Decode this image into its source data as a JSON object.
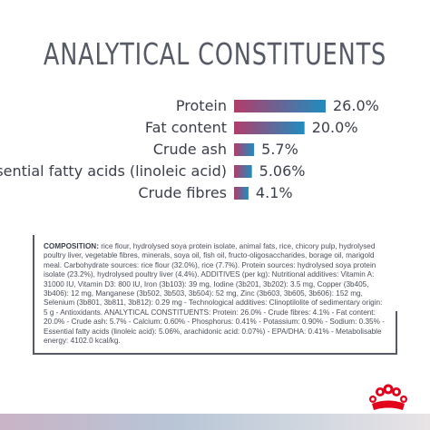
{
  "title": "ANALYTICAL CONSTITUENTS",
  "chart_data": {
    "type": "bar",
    "orientation": "horizontal",
    "categories": [
      "Protein",
      "Fat content",
      "Crude ash",
      "Essential fatty acids (linoleic acid)",
      "Crude fibres"
    ],
    "values": [
      26.0,
      20.0,
      5.7,
      5.06,
      4.1
    ],
    "value_labels": [
      "26.0%",
      "20.0%",
      "5.7%",
      "5.06%",
      "4.1%"
    ],
    "xlim": [
      0,
      26.0
    ],
    "grid": false,
    "colors": {
      "start": "#b23d6a",
      "end": "#1f8dbf",
      "text": "#3a3f4b"
    }
  },
  "composition": {
    "heading": "COMPOSITION:",
    "text": " rice flour, hydrolysed soya protein isolate, animal fats, rice, chicory pulp, hydrolysed poultry liver, vegetable fibres, minerals, soya oil, fish oil, fructo-oligosaccharides, borage oil, marigold meal. Carbohydrate sources: rice flour (32.0%), rice (7.7%). Protein sources: hydrolysed soya protein isolate (23.2%), hydrolysed poultry liver (4.4%). ADDITIVES (per kg): Nutritional additives: Vitamin A: 31000 IU, Vitamin D3: 800 IU, Iron (3b103): 39 mg, Iodine (3b201, 3b202): 3.5 mg, Copper (3b405, 3b406): 12 mg, Manganese (3b502, 3b503, 3b504): 52 mg, Zinc (3b603, 3b605, 3b606): 152 mg, Selenium (3b801, 3b811, 3b812): 0.29 mg - Technological additives: Clinoptilolite of sedimentary origin: 5 g - Antioxidants. ANALYTICAL CONSTITUENTS: Protein: 26.0% - Crude fibres: 4.1% - Fat content: 20.0% - Crude ash: 5.7% - Calcium: 0.60% - Phosphorus: 0.41% - Potassium: 0.90% - Sodium: 0.35% - Essential fatty acids (linoleic acid): 5.06%, arachidonic acid: 0.07%) - EPA/DHA: 0.41% - Metabolisable energy: 4102.0 kcal/kg."
  },
  "logo": {
    "icon": "royal-crown-icon",
    "colors": [
      "#e2001a"
    ]
  }
}
